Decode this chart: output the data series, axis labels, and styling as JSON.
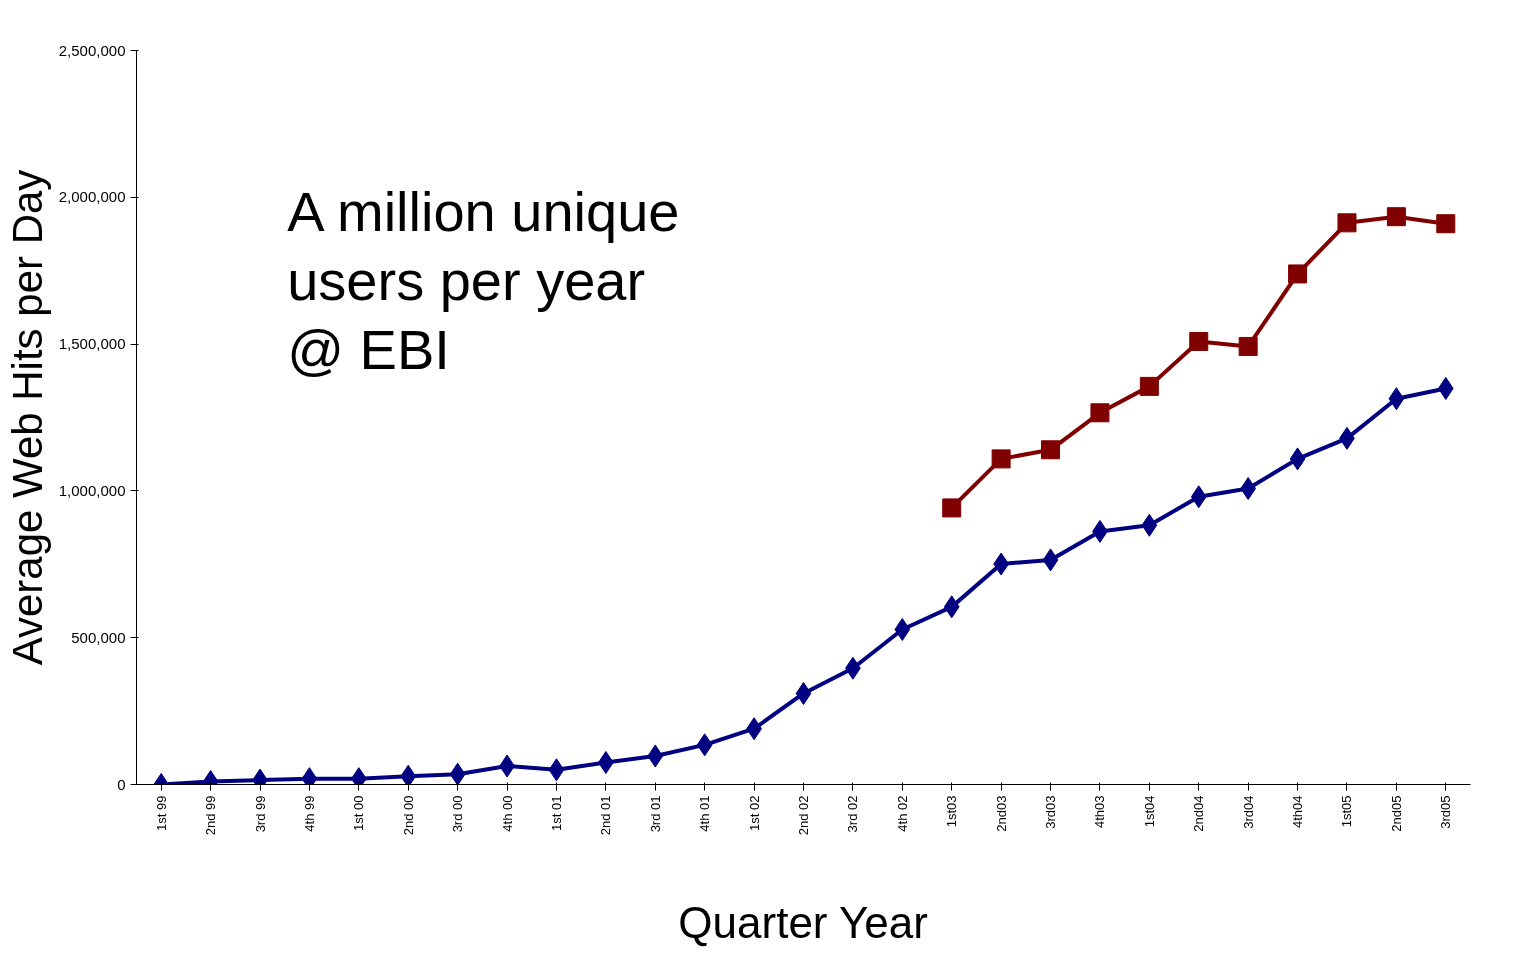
{
  "chart_data": {
    "type": "line",
    "xlabel": "Quarter Year",
    "ylabel": "Average Web Hits per Day",
    "categories": [
      "1st 99",
      "2nd 99",
      "3rd 99",
      "4th 99",
      "1st 00",
      "2nd 00",
      "3rd 00",
      "4th 00",
      "1st 01",
      "2nd 01",
      "3rd 01",
      "4th 01",
      "1st 02",
      "2nd 02",
      "3rd 02",
      "4th 02",
      "1st03",
      "2nd03",
      "3rd03",
      "4th03",
      "1st04",
      "2nd04",
      "3rd04",
      "4th04",
      "1st05",
      "2nd05",
      "3rd05"
    ],
    "series": [
      {
        "color": "#000080",
        "marker": "diamond",
        "values": [
          0,
          10000,
          15000,
          20000,
          20000,
          28000,
          35000,
          63000,
          50000,
          75000,
          97000,
          135000,
          190000,
          310000,
          396000,
          528000,
          605000,
          751000,
          765000,
          862000,
          883000,
          980000,
          1008000,
          1109000,
          1179000,
          1314000,
          1349000
        ]
      },
      {
        "color": "#800000",
        "marker": "square",
        "values": [
          null,
          null,
          null,
          null,
          null,
          null,
          null,
          null,
          null,
          null,
          null,
          null,
          null,
          null,
          null,
          null,
          942000,
          1109000,
          1140000,
          1266000,
          1356000,
          1509000,
          1492000,
          1739000,
          1913000,
          1934000,
          1910000
        ]
      }
    ],
    "ylim": [
      0,
      2500000
    ],
    "yticks": [
      {
        "value": 0,
        "label": "0"
      },
      {
        "value": 500000,
        "label": "500,000"
      },
      {
        "value": 1000000,
        "label": "1,000,000"
      },
      {
        "value": 1500000,
        "label": "1,500,000"
      },
      {
        "value": 2000000,
        "label": "2,000,000"
      },
      {
        "value": 2500000,
        "label": "2,500,000"
      }
    ],
    "annotations": [
      "A million unique\nusers per year\n@ EBI"
    ],
    "grid": false
  }
}
